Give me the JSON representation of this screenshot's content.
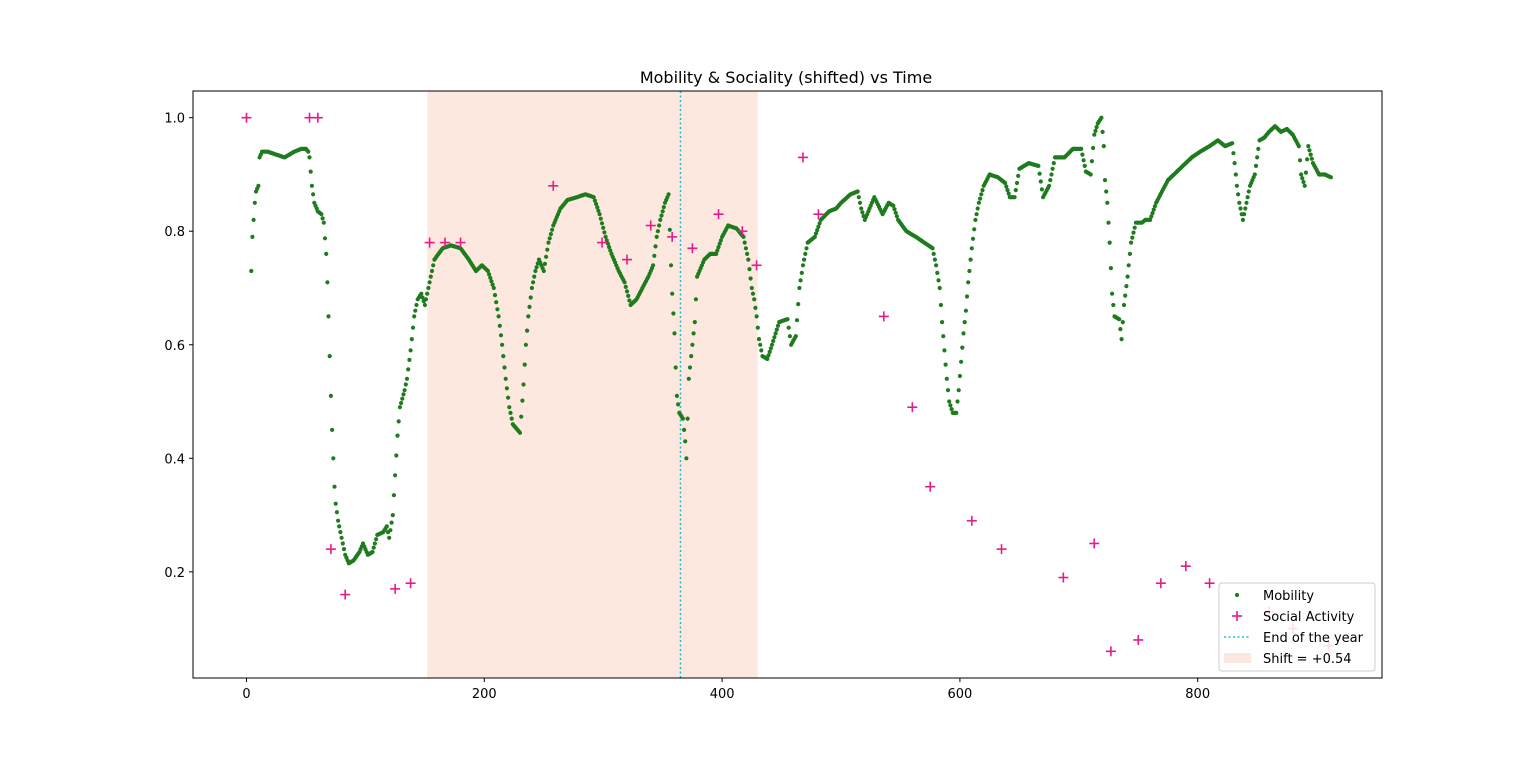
{
  "chart_data": {
    "type": "scatter",
    "title": "Mobility & Sociality (shifted) vs Time",
    "xlabel": "",
    "ylabel": "",
    "xlim": [
      -45,
      955
    ],
    "ylim": [
      0.013,
      1.047
    ],
    "x_ticks": [
      "0",
      "200",
      "400",
      "600",
      "800"
    ],
    "y_ticks": [
      "0.2",
      "0.4",
      "0.6",
      "0.8",
      "1.0"
    ],
    "grid": false,
    "legend_position": "lower right",
    "shaded_region": {
      "x_start": 152,
      "x_end": 430,
      "label": "Shift = +0.54",
      "color": "#fde8df"
    },
    "vline": {
      "x": 365,
      "label": "End of the year",
      "color": "#17becf",
      "style": "dotted"
    },
    "series": [
      {
        "name": "Mobility",
        "marker": "dot",
        "color": "#1e7b1e",
        "keypoints": [
          [
            4,
            0.73
          ],
          [
            5,
            0.79
          ],
          [
            6,
            0.82
          ],
          [
            7,
            0.85
          ],
          [
            8,
            0.87
          ],
          [
            10,
            0.88
          ],
          [
            11,
            0.93
          ],
          [
            13,
            0.94
          ],
          [
            18,
            0.94
          ],
          [
            25,
            0.935
          ],
          [
            32,
            0.93
          ],
          [
            40,
            0.94
          ],
          [
            46,
            0.945
          ],
          [
            50,
            0.945
          ],
          [
            52,
            0.94
          ],
          [
            53,
            0.93
          ],
          [
            55,
            0.88
          ],
          [
            57,
            0.85
          ],
          [
            60,
            0.835
          ],
          [
            63,
            0.83
          ],
          [
            65,
            0.815
          ],
          [
            67,
            0.76
          ],
          [
            68,
            0.71
          ],
          [
            69,
            0.65
          ],
          [
            70,
            0.58
          ],
          [
            71,
            0.51
          ],
          [
            72,
            0.45
          ],
          [
            73,
            0.4
          ],
          [
            74,
            0.35
          ],
          [
            75,
            0.32
          ],
          [
            77,
            0.29
          ],
          [
            80,
            0.26
          ],
          [
            83,
            0.23
          ],
          [
            86,
            0.215
          ],
          [
            90,
            0.22
          ],
          [
            95,
            0.235
          ],
          [
            98,
            0.25
          ],
          [
            102,
            0.23
          ],
          [
            106,
            0.235
          ],
          [
            110,
            0.265
          ],
          [
            115,
            0.27
          ],
          [
            118,
            0.28
          ],
          [
            120,
            0.26
          ],
          [
            123,
            0.3
          ],
          [
            125,
            0.37
          ],
          [
            127,
            0.44
          ],
          [
            129,
            0.49
          ],
          [
            133,
            0.52
          ],
          [
            135,
            0.54
          ],
          [
            138,
            0.59
          ],
          [
            141,
            0.65
          ],
          [
            144,
            0.68
          ],
          [
            147,
            0.69
          ],
          [
            150,
            0.67
          ],
          [
            153,
            0.7
          ],
          [
            158,
            0.75
          ],
          [
            165,
            0.77
          ],
          [
            172,
            0.775
          ],
          [
            180,
            0.77
          ],
          [
            187,
            0.75
          ],
          [
            193,
            0.73
          ],
          [
            198,
            0.74
          ],
          [
            203,
            0.73
          ],
          [
            208,
            0.7
          ],
          [
            212,
            0.65
          ],
          [
            215,
            0.6
          ],
          [
            218,
            0.54
          ],
          [
            221,
            0.49
          ],
          [
            224,
            0.46
          ],
          [
            228,
            0.45
          ],
          [
            230,
            0.445
          ],
          [
            233,
            0.53
          ],
          [
            235,
            0.6
          ],
          [
            237,
            0.65
          ],
          [
            240,
            0.7
          ],
          [
            243,
            0.73
          ],
          [
            246,
            0.75
          ],
          [
            250,
            0.73
          ],
          [
            254,
            0.78
          ],
          [
            258,
            0.81
          ],
          [
            264,
            0.84
          ],
          [
            270,
            0.855
          ],
          [
            278,
            0.86
          ],
          [
            285,
            0.865
          ],
          [
            292,
            0.86
          ],
          [
            297,
            0.83
          ],
          [
            302,
            0.79
          ],
          [
            307,
            0.76
          ],
          [
            313,
            0.73
          ],
          [
            318,
            0.71
          ],
          [
            323,
            0.67
          ],
          [
            328,
            0.68
          ],
          [
            333,
            0.7
          ],
          [
            338,
            0.72
          ],
          [
            342,
            0.74
          ],
          [
            345,
            0.79
          ],
          [
            348,
            0.82
          ],
          [
            352,
            0.85
          ],
          [
            355,
            0.865
          ],
          [
            357,
            0.74
          ],
          [
            358,
            0.69
          ],
          [
            360,
            0.62
          ],
          [
            361,
            0.56
          ],
          [
            362,
            0.51
          ],
          [
            364,
            0.48
          ],
          [
            367,
            0.47
          ],
          [
            369,
            0.43
          ],
          [
            370,
            0.4
          ],
          [
            372,
            0.54
          ],
          [
            375,
            0.6
          ],
          [
            377,
            0.64
          ],
          [
            379,
            0.72
          ],
          [
            385,
            0.75
          ],
          [
            390,
            0.76
          ],
          [
            395,
            0.76
          ],
          [
            400,
            0.79
          ],
          [
            405,
            0.81
          ],
          [
            412,
            0.805
          ],
          [
            418,
            0.79
          ],
          [
            422,
            0.75
          ],
          [
            425,
            0.7
          ],
          [
            427,
            0.68
          ],
          [
            429,
            0.65
          ],
          [
            431,
            0.61
          ],
          [
            434,
            0.58
          ],
          [
            438,
            0.575
          ],
          [
            442,
            0.6
          ],
          [
            448,
            0.64
          ],
          [
            455,
            0.645
          ],
          [
            458,
            0.6
          ],
          [
            462,
            0.615
          ],
          [
            465,
            0.7
          ],
          [
            468,
            0.74
          ],
          [
            472,
            0.78
          ],
          [
            478,
            0.79
          ],
          [
            483,
            0.82
          ],
          [
            490,
            0.835
          ],
          [
            496,
            0.84
          ],
          [
            500,
            0.85
          ],
          [
            508,
            0.865
          ],
          [
            514,
            0.87
          ],
          [
            517,
            0.84
          ],
          [
            520,
            0.82
          ],
          [
            528,
            0.86
          ],
          [
            535,
            0.83
          ],
          [
            540,
            0.85
          ],
          [
            544,
            0.845
          ],
          [
            548,
            0.82
          ],
          [
            555,
            0.8
          ],
          [
            563,
            0.79
          ],
          [
            570,
            0.78
          ],
          [
            577,
            0.77
          ],
          [
            580,
            0.74
          ],
          [
            583,
            0.7
          ],
          [
            585,
            0.64
          ],
          [
            587,
            0.59
          ],
          [
            589,
            0.54
          ],
          [
            591,
            0.5
          ],
          [
            594,
            0.48
          ],
          [
            597,
            0.48
          ],
          [
            599,
            0.52
          ],
          [
            601,
            0.57
          ],
          [
            603,
            0.62
          ],
          [
            605,
            0.66
          ],
          [
            607,
            0.71
          ],
          [
            610,
            0.77
          ],
          [
            613,
            0.82
          ],
          [
            616,
            0.85
          ],
          [
            620,
            0.88
          ],
          [
            625,
            0.9
          ],
          [
            632,
            0.895
          ],
          [
            638,
            0.885
          ],
          [
            642,
            0.86
          ],
          [
            646,
            0.86
          ],
          [
            650,
            0.91
          ],
          [
            658,
            0.92
          ],
          [
            666,
            0.915
          ],
          [
            670,
            0.86
          ],
          [
            675,
            0.88
          ],
          [
            680,
            0.93
          ],
          [
            688,
            0.93
          ],
          [
            695,
            0.945
          ],
          [
            702,
            0.945
          ],
          [
            706,
            0.905
          ],
          [
            710,
            0.9
          ],
          [
            713,
            0.97
          ],
          [
            716,
            0.99
          ],
          [
            719,
            1.0
          ],
          [
            721,
            0.95
          ],
          [
            722,
            0.89
          ],
          [
            724,
            0.85
          ],
          [
            726,
            0.78
          ],
          [
            728,
            0.69
          ],
          [
            730,
            0.65
          ],
          [
            734,
            0.645
          ],
          [
            736,
            0.61
          ],
          [
            738,
            0.67
          ],
          [
            741,
            0.72
          ],
          [
            744,
            0.78
          ],
          [
            748,
            0.815
          ],
          [
            753,
            0.815
          ],
          [
            756,
            0.82
          ],
          [
            760,
            0.82
          ],
          [
            765,
            0.85
          ],
          [
            770,
            0.87
          ],
          [
            775,
            0.89
          ],
          [
            780,
            0.9
          ],
          [
            785,
            0.91
          ],
          [
            790,
            0.92
          ],
          [
            795,
            0.93
          ],
          [
            802,
            0.94
          ],
          [
            810,
            0.95
          ],
          [
            817,
            0.96
          ],
          [
            823,
            0.95
          ],
          [
            829,
            0.955
          ],
          [
            831,
            0.92
          ],
          [
            833,
            0.88
          ],
          [
            835,
            0.85
          ],
          [
            838,
            0.82
          ],
          [
            840,
            0.84
          ],
          [
            844,
            0.88
          ],
          [
            848,
            0.9
          ],
          [
            852,
            0.96
          ],
          [
            856,
            0.965
          ],
          [
            860,
            0.975
          ],
          [
            865,
            0.985
          ],
          [
            870,
            0.975
          ],
          [
            875,
            0.98
          ],
          [
            880,
            0.97
          ],
          [
            885,
            0.95
          ],
          [
            887,
            0.9
          ],
          [
            890,
            0.88
          ],
          [
            893,
            0.95
          ],
          [
            897,
            0.92
          ],
          [
            902,
            0.9
          ],
          [
            907,
            0.9
          ],
          [
            912,
            0.895
          ]
        ]
      },
      {
        "name": "Social Activity",
        "marker": "plus",
        "color": "#e8198b",
        "points": [
          [
            0,
            1.0
          ],
          [
            53,
            1.0
          ],
          [
            60,
            1.0
          ],
          [
            71,
            0.24
          ],
          [
            83,
            0.16
          ],
          [
            125,
            0.17
          ],
          [
            138,
            0.18
          ],
          [
            154,
            0.78
          ],
          [
            167,
            0.78
          ],
          [
            180,
            0.78
          ],
          [
            258,
            0.88
          ],
          [
            299,
            0.78
          ],
          [
            320,
            0.75
          ],
          [
            340,
            0.81
          ],
          [
            358,
            0.79
          ],
          [
            375,
            0.77
          ],
          [
            397,
            0.83
          ],
          [
            417,
            0.8
          ],
          [
            429,
            0.74
          ],
          [
            468,
            0.93
          ],
          [
            481,
            0.83
          ],
          [
            536,
            0.65
          ],
          [
            560,
            0.49
          ],
          [
            575,
            0.35
          ],
          [
            610,
            0.29
          ],
          [
            635,
            0.24
          ],
          [
            687,
            0.19
          ],
          [
            713,
            0.25
          ],
          [
            727,
            0.06
          ],
          [
            750,
            0.08
          ],
          [
            769,
            0.18
          ],
          [
            790,
            0.21
          ],
          [
            810,
            0.18
          ],
          [
            860,
            0.13
          ],
          [
            880,
            0.1
          ],
          [
            910,
            0.07
          ]
        ]
      }
    ],
    "legend": [
      {
        "label": "Mobility",
        "marker": "dot"
      },
      {
        "label": "Social Activity",
        "marker": "plus"
      },
      {
        "label": "End of the year",
        "marker": "dotted-line"
      },
      {
        "label": "Shift = +0.54",
        "marker": "patch"
      }
    ]
  }
}
